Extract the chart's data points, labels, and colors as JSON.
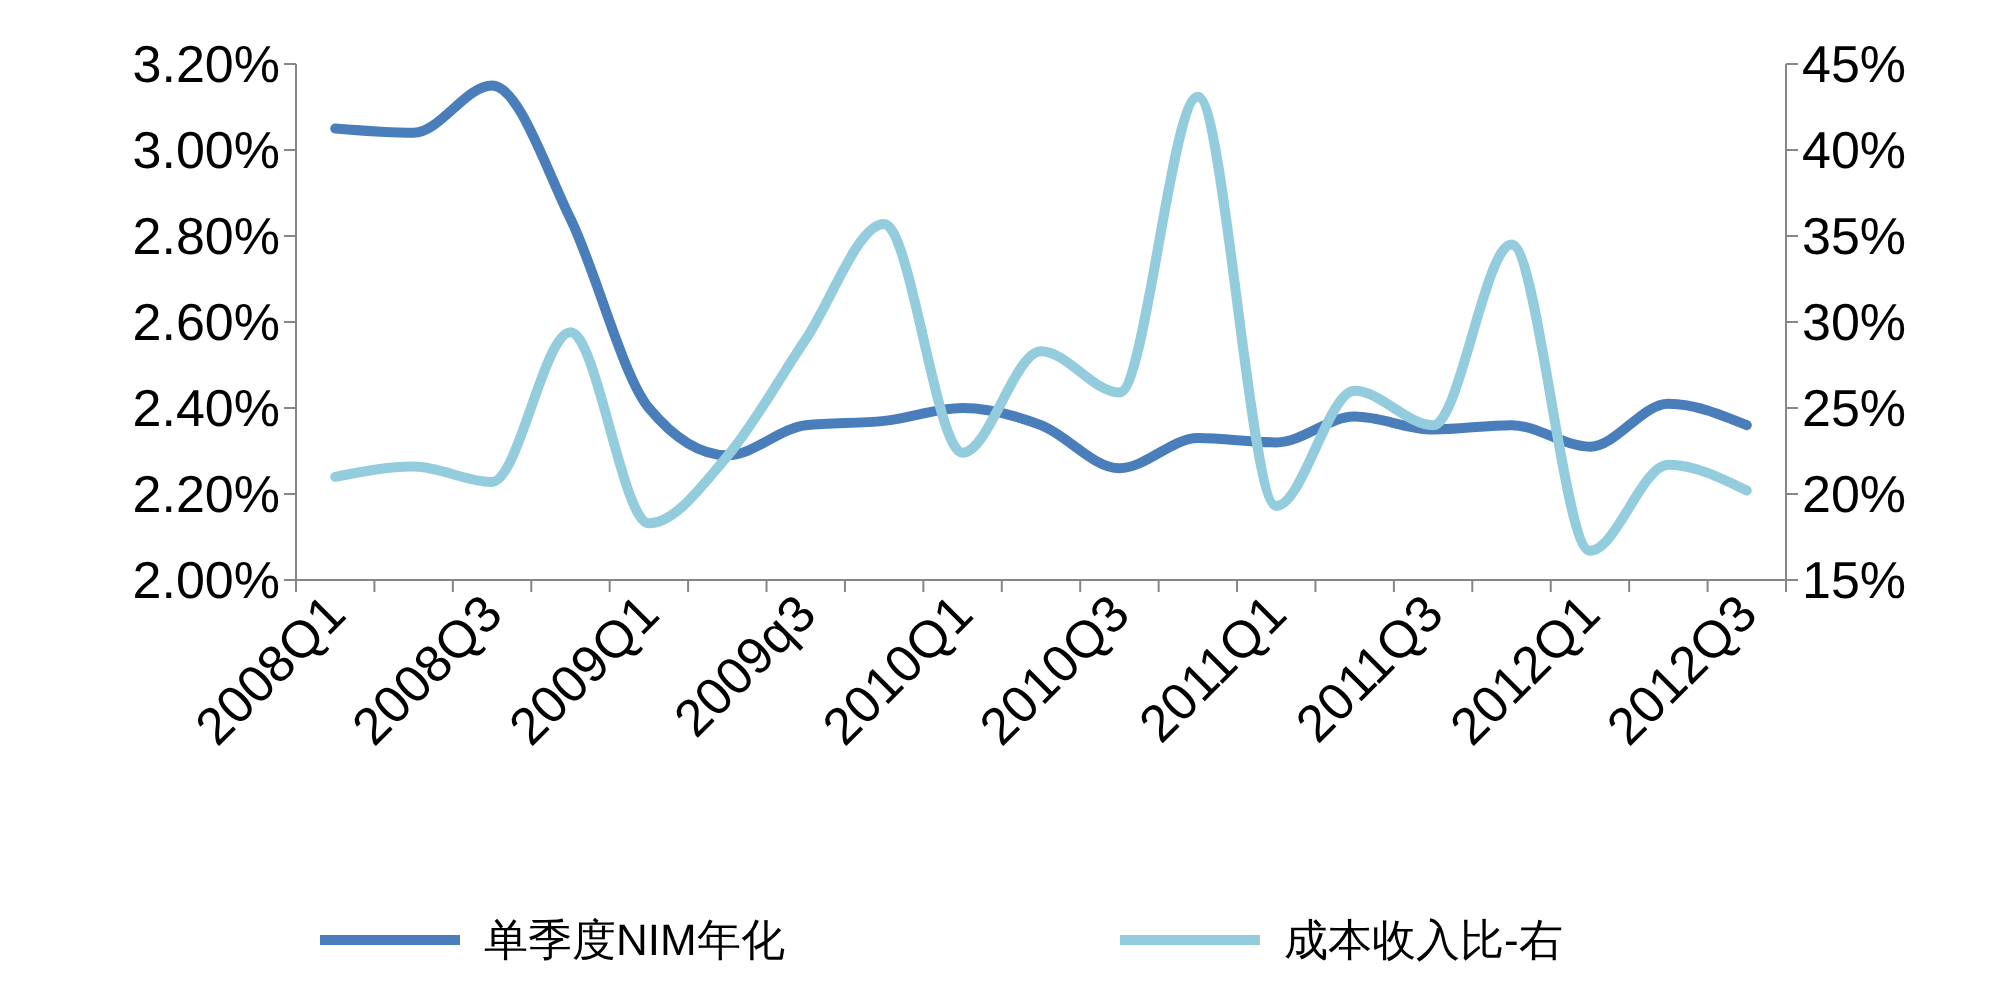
{
  "chart_data": {
    "type": "line",
    "categories": [
      "2008Q1",
      null,
      "2008Q3",
      null,
      "2009Q1",
      null,
      "2009q3",
      null,
      "2010Q1",
      null,
      "2010Q3",
      null,
      "2011Q1",
      null,
      "2011Q3",
      null,
      "2012Q1",
      null,
      "2012Q3"
    ],
    "series": [
      {
        "name": "单季度NIM年化",
        "color": "#4a7ebb",
        "values": [
          3.05,
          3.04,
          3.15,
          2.84,
          2.4,
          2.29,
          2.36,
          2.37,
          2.4,
          2.36,
          2.26,
          2.33,
          2.32,
          2.38,
          2.35,
          2.36,
          2.31,
          2.41,
          2.36
        ]
      },
      {
        "name": "成本收入比-右",
        "color": "#93cddd",
        "axis": "y2",
        "values": [
          21.0,
          21.6,
          20.7,
          29.4,
          18.3,
          22.2,
          29.0,
          35.7,
          22.4,
          28.3,
          25.9,
          43.1,
          19.3,
          26.0,
          24.0,
          34.5,
          16.7,
          21.7,
          20.2
        ]
      }
    ],
    "ylim": [
      2.0,
      3.2
    ],
    "yticks": [
      {
        "value": 2.0,
        "label": "2.00%"
      },
      {
        "value": 2.2,
        "label": "2.20%"
      },
      {
        "value": 2.4,
        "label": "2.40%"
      },
      {
        "value": 2.6,
        "label": "2.60%"
      },
      {
        "value": 2.8,
        "label": "2.80%"
      },
      {
        "value": 3.0,
        "label": "3.00%"
      },
      {
        "value": 3.2,
        "label": "3.20%"
      }
    ],
    "y2lim": [
      15,
      45
    ],
    "y2ticks": [
      {
        "value": 15,
        "label": "15%"
      },
      {
        "value": 20,
        "label": "20%"
      },
      {
        "value": 25,
        "label": "25%"
      },
      {
        "value": 30,
        "label": "30%"
      },
      {
        "value": 35,
        "label": "35%"
      },
      {
        "value": 40,
        "label": "40%"
      },
      {
        "value": 45,
        "label": "45%"
      }
    ],
    "legend": "bottom",
    "grid": false,
    "marker": "none",
    "line_style": "solid"
  }
}
